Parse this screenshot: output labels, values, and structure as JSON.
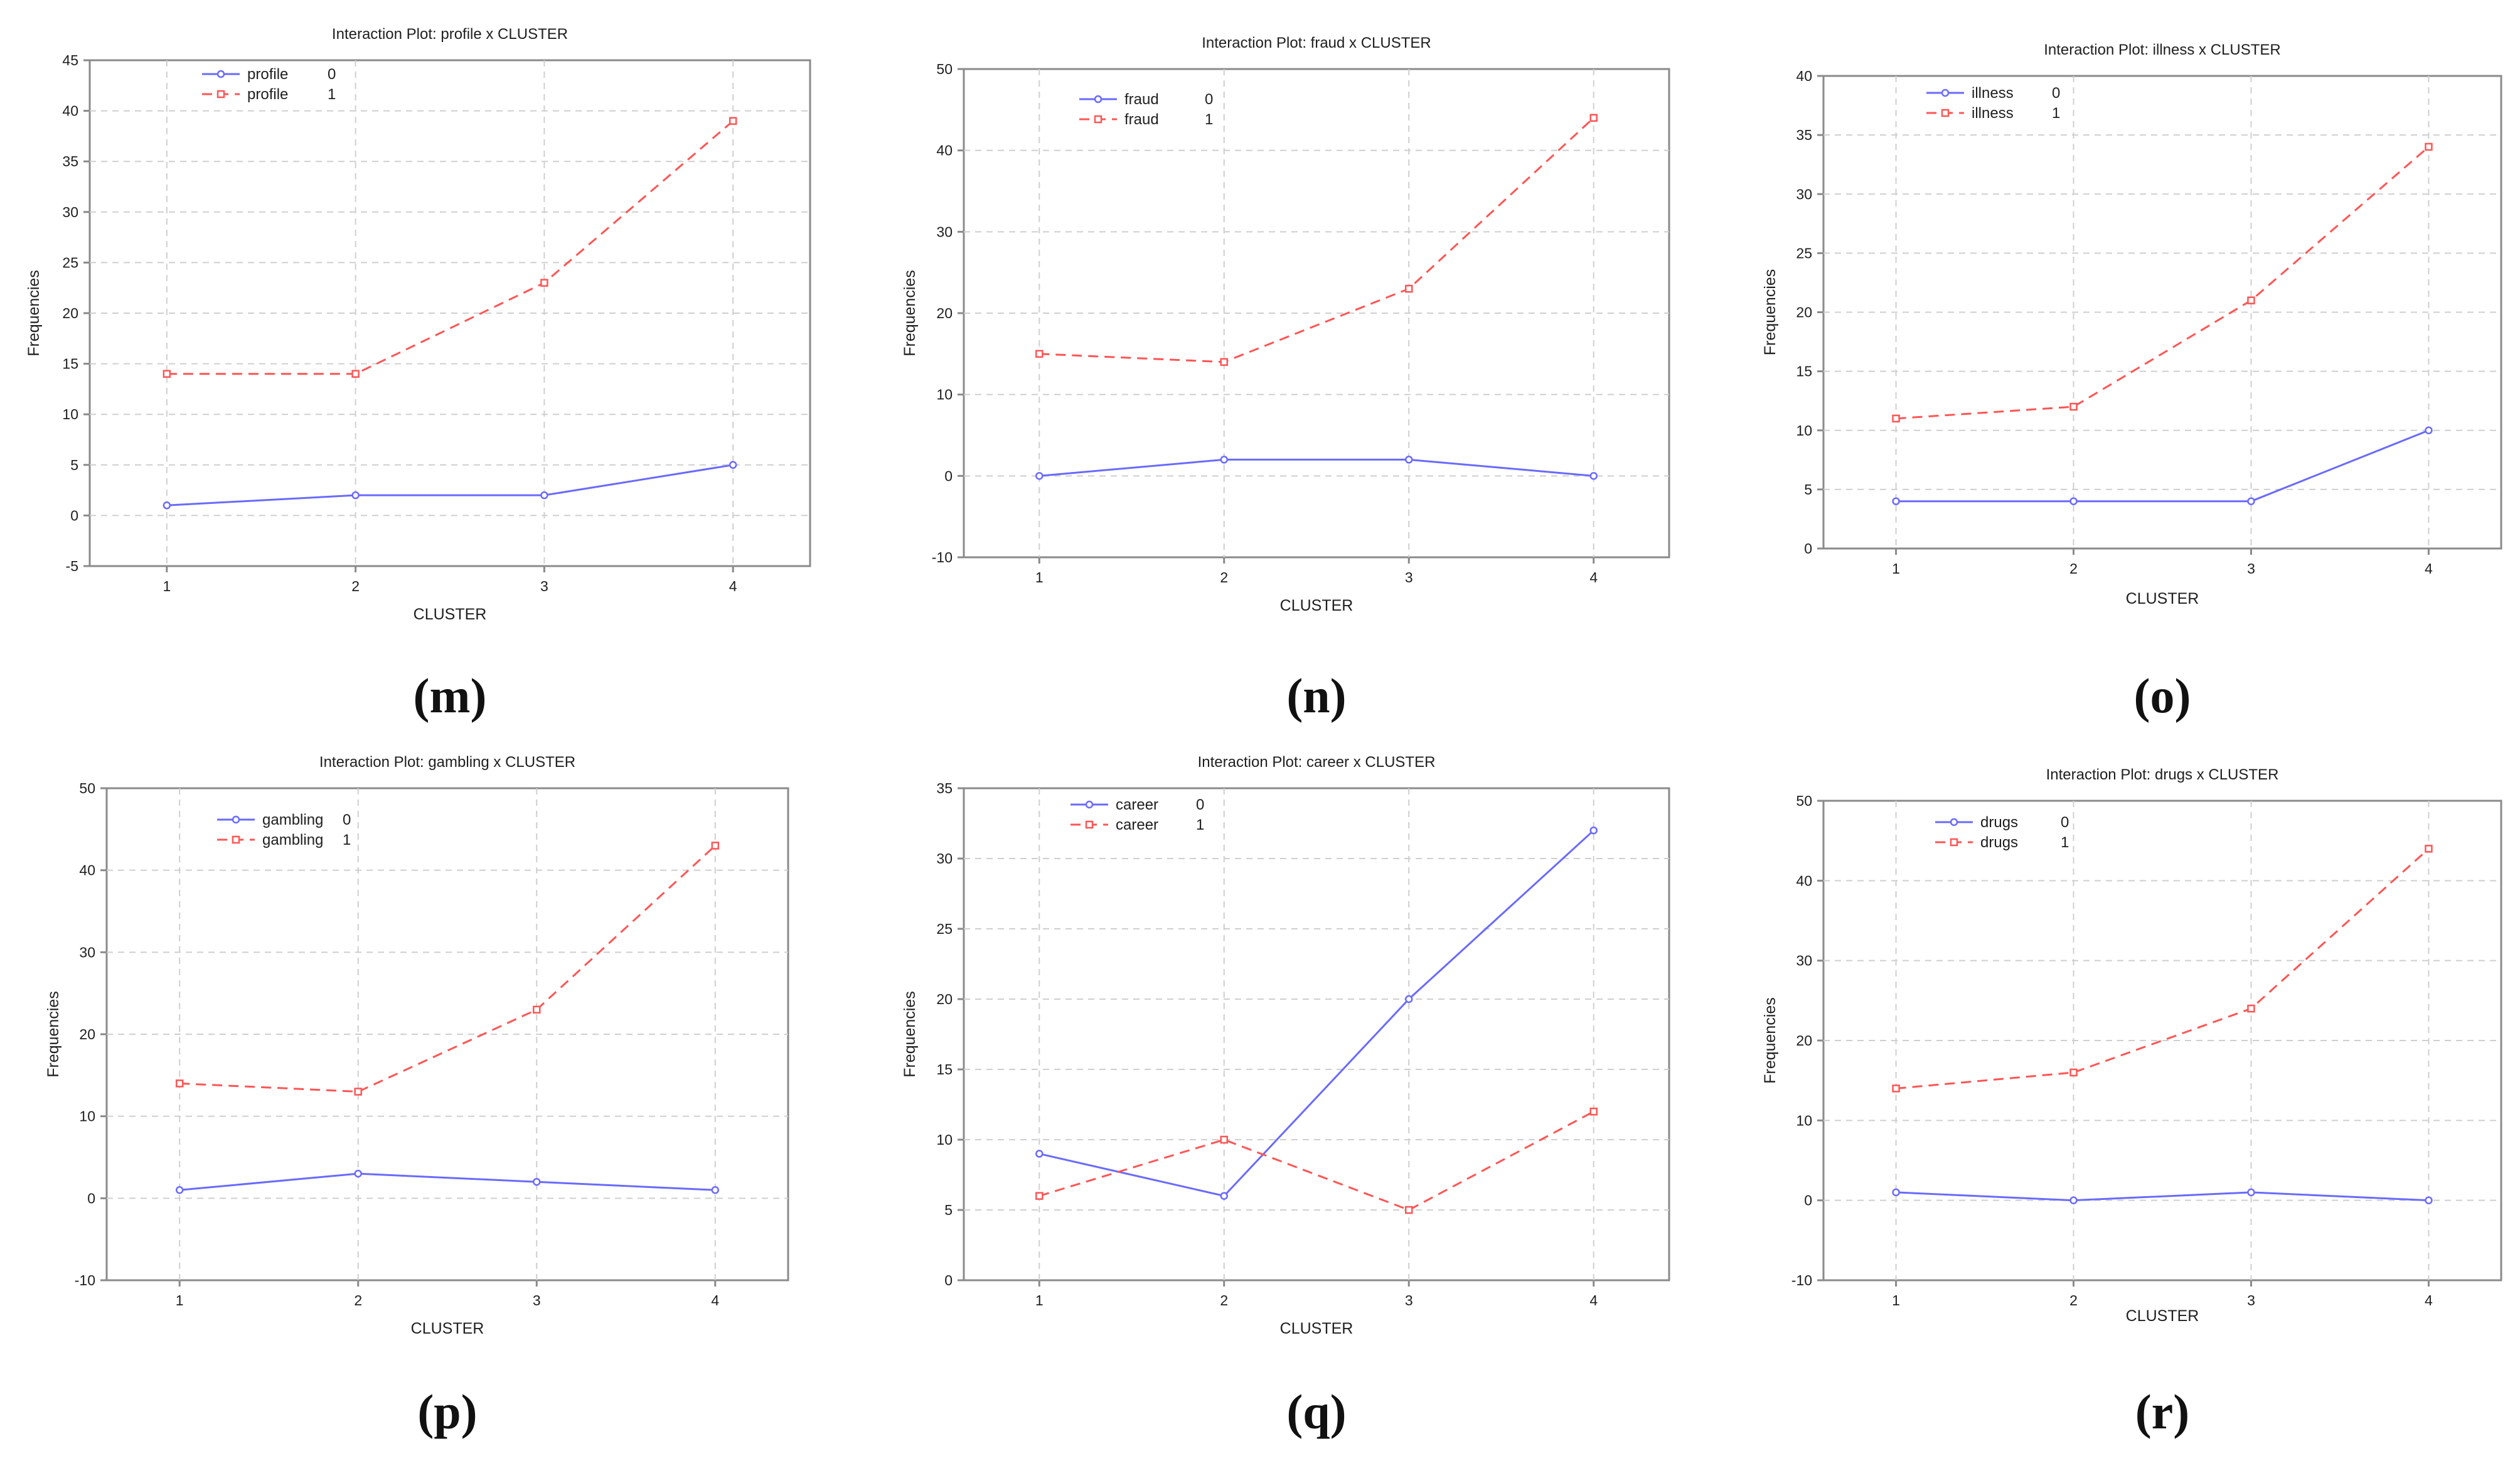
{
  "colors": {
    "series0": "#6a6aff",
    "series1": "#ff5555"
  },
  "chart_data": [
    {
      "type": "line",
      "caption": "(m)",
      "title": "Interaction Plot: profile x CLUSTER",
      "xlabel": "CLUSTER",
      "ylabel": "Frequencies",
      "categories": [
        "1",
        "2",
        "3",
        "4"
      ],
      "ylim": [
        -5,
        45
      ],
      "yticks": [
        -5,
        0,
        5,
        10,
        15,
        20,
        25,
        30,
        35,
        40,
        45
      ],
      "legend": "top-left",
      "series": [
        {
          "name": "profile",
          "level": "0",
          "values": [
            1,
            2,
            2,
            5
          ]
        },
        {
          "name": "profile",
          "level": "1",
          "values": [
            14,
            14,
            23,
            39
          ]
        }
      ]
    },
    {
      "type": "line",
      "caption": "(n)",
      "title": "Interaction Plot: fraud x CLUSTER",
      "xlabel": "CLUSTER",
      "ylabel": "Frequencies",
      "categories": [
        "1",
        "2",
        "3",
        "4"
      ],
      "ylim": [
        -10,
        50
      ],
      "yticks": [
        -10,
        0,
        10,
        20,
        30,
        40,
        50
      ],
      "legend": "top-left",
      "series": [
        {
          "name": "fraud",
          "level": "0",
          "values": [
            0,
            2,
            2,
            0
          ]
        },
        {
          "name": "fraud",
          "level": "1",
          "values": [
            15,
            14,
            23,
            44
          ]
        }
      ]
    },
    {
      "type": "line",
      "caption": "(o)",
      "title": "Interaction Plot: illness x CLUSTER",
      "xlabel": "CLUSTER",
      "ylabel": "Frequencies",
      "categories": [
        "1",
        "2",
        "3",
        "4"
      ],
      "ylim": [
        0,
        40
      ],
      "yticks": [
        0,
        5,
        10,
        15,
        20,
        25,
        30,
        35,
        40
      ],
      "legend": "top-left",
      "series": [
        {
          "name": "illness",
          "level": "0",
          "values": [
            4,
            4,
            4,
            10
          ]
        },
        {
          "name": "illness",
          "level": "1",
          "values": [
            11,
            12,
            21,
            34
          ]
        }
      ]
    },
    {
      "type": "line",
      "caption": "(p)",
      "title": "Interaction Plot: gambling x CLUSTER",
      "xlabel": "CLUSTER",
      "ylabel": "Frequencies",
      "categories": [
        "1",
        "2",
        "3",
        "4"
      ],
      "ylim": [
        -10,
        50
      ],
      "yticks": [
        -10,
        0,
        10,
        20,
        30,
        40,
        50
      ],
      "legend": "top-left",
      "series": [
        {
          "name": "gambling",
          "level": "0",
          "values": [
            1,
            3,
            2,
            1
          ]
        },
        {
          "name": "gambling",
          "level": "1",
          "values": [
            14,
            13,
            23,
            43
          ]
        }
      ]
    },
    {
      "type": "line",
      "caption": "(q)",
      "title": "Interaction Plot: career x CLUSTER",
      "xlabel": "CLUSTER",
      "ylabel": "Frequencies",
      "categories": [
        "1",
        "2",
        "3",
        "4"
      ],
      "ylim": [
        0,
        35
      ],
      "yticks": [
        0,
        5,
        10,
        15,
        20,
        25,
        30,
        35
      ],
      "legend": "top-left",
      "series": [
        {
          "name": "career",
          "level": "0",
          "values": [
            9,
            6,
            20,
            32
          ]
        },
        {
          "name": "career",
          "level": "1",
          "values": [
            6,
            10,
            5,
            12
          ]
        }
      ]
    },
    {
      "type": "line",
      "caption": "(r)",
      "title": "Interaction Plot: drugs x CLUSTER",
      "xlabel": "CLUSTER",
      "ylabel": "Frequencies",
      "categories": [
        "1",
        "2",
        "3",
        "4"
      ],
      "ylim": [
        -10,
        50
      ],
      "yticks": [
        -10,
        0,
        10,
        20,
        30,
        40,
        50
      ],
      "legend": "top-left",
      "series": [
        {
          "name": "drugs",
          "level": "0",
          "values": [
            1,
            0,
            1,
            0
          ]
        },
        {
          "name": "drugs",
          "level": "1",
          "values": [
            14,
            16,
            24,
            44
          ]
        }
      ]
    }
  ]
}
